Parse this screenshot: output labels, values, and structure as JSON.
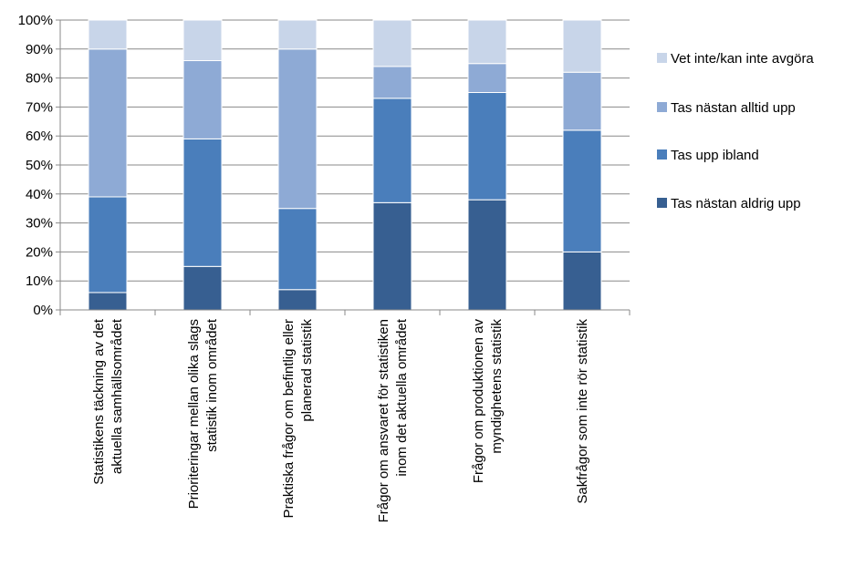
{
  "chart_data": {
    "type": "bar",
    "stacked": true,
    "normalized": true,
    "title": "",
    "xlabel": "",
    "ylabel": "",
    "ylim": [
      0,
      100
    ],
    "yticks": [
      "0%",
      "10%",
      "20%",
      "30%",
      "40%",
      "50%",
      "60%",
      "70%",
      "80%",
      "90%",
      "100%"
    ],
    "grid": true,
    "legend_position": "right",
    "categories": [
      [
        "Statistikens täckning av det",
        "aktuella samhällsområdet"
      ],
      [
        "Prioriteringar mellan olika slags",
        "statistik inom området"
      ],
      [
        "Praktiska frågor om befintlig eller",
        "planerad statistik"
      ],
      [
        "Frågor om ansvaret för statistiken",
        "inom det aktuella området"
      ],
      [
        "Frågor om produktionen av",
        "myndighetens statistik"
      ],
      [
        "Sakfrågor som inte rör statistik"
      ]
    ],
    "series": [
      {
        "name": "Tas nästan aldrig upp",
        "color": "#375f91",
        "values": [
          6,
          15,
          7,
          37,
          38,
          20
        ]
      },
      {
        "name": "Tas upp ibland",
        "color": "#4a7ebb",
        "values": [
          33,
          44,
          28,
          36,
          37,
          42
        ]
      },
      {
        "name": "Tas nästan alltid upp",
        "color": "#8eaad5",
        "values": [
          51,
          27,
          55,
          11,
          10,
          20
        ]
      },
      {
        "name": "Vet inte/kan inte avgöra",
        "color": "#c8d5e9",
        "values": [
          10,
          14,
          10,
          16,
          15,
          18
        ]
      }
    ],
    "legend_order": [
      "Vet inte/kan inte avgöra",
      "Tas nästan alltid upp",
      "Tas upp ibland",
      "Tas nästan aldrig upp"
    ]
  }
}
